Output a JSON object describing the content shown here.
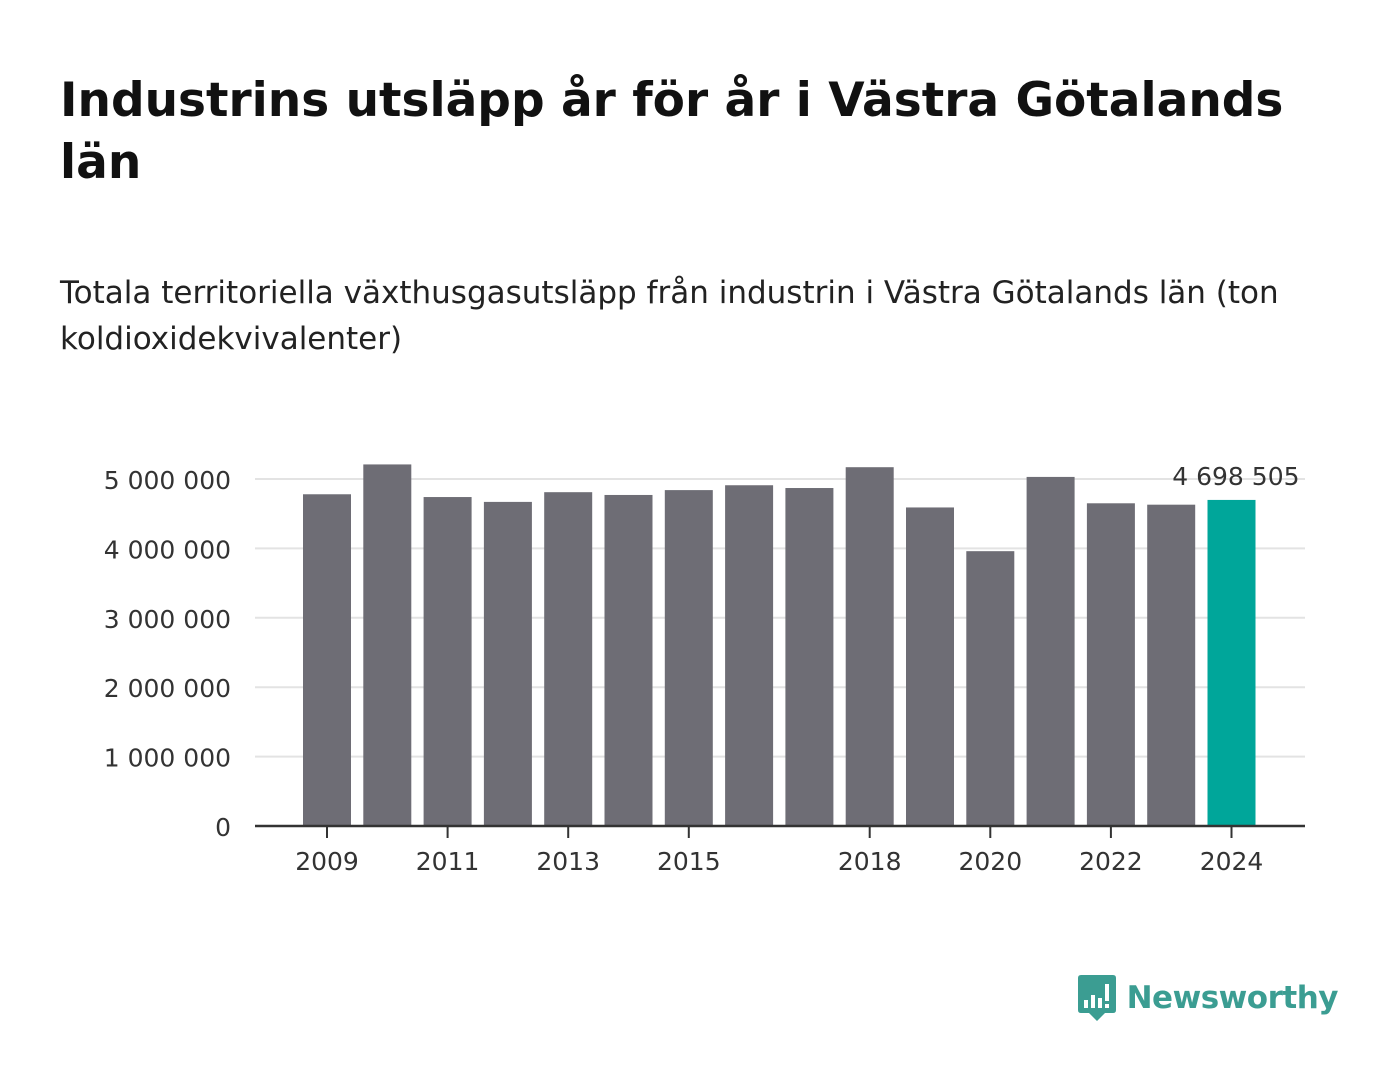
{
  "header": {
    "title": "Industrins utsläpp år för år i Västra Götalands län",
    "subtitle": "Totala territoriella växthusgasutsläpp från industrin i Västra Götalands län (ton koldioxidekvivalenter)"
  },
  "brand": {
    "name": "Newsworthy",
    "icon": "bar-chart-icon",
    "color": "#3b9d92"
  },
  "colors": {
    "bar": "#6e6d75",
    "highlight": "#00a69a",
    "grid": "#e3e3e3",
    "axis": "#333333"
  },
  "chart_data": {
    "type": "bar",
    "title": "Industrins utsläpp år för år i Västra Götalands län",
    "subtitle": "Totala territoriella växthusgasutsläpp från industrin i Västra Götalands län (ton koldioxidekvivalenter)",
    "xlabel": "",
    "ylabel": "",
    "categories": [
      "2009",
      "2010",
      "2011",
      "2012",
      "2013",
      "2014",
      "2015",
      "2016",
      "2017",
      "2018",
      "2019",
      "2020",
      "2021",
      "2022",
      "2023",
      "2024"
    ],
    "values": [
      4780000,
      5210000,
      4740000,
      4670000,
      4810000,
      4770000,
      4840000,
      4910000,
      4870000,
      5170000,
      4590000,
      3960000,
      5030000,
      4650000,
      4630000,
      4698505
    ],
    "x_tick_labels": [
      "2009",
      "2011",
      "2013",
      "2015",
      "2018",
      "2020",
      "2022",
      "2024"
    ],
    "ylim": [
      0,
      5200000
    ],
    "y_ticks": [
      0,
      1000000,
      2000000,
      3000000,
      4000000,
      5000000
    ],
    "y_tick_labels": [
      "0",
      "1 000 000",
      "2 000 000",
      "3 000 000",
      "4 000 000",
      "5 000 000"
    ],
    "highlight_index": 15,
    "annotation": "4 698 505",
    "grid": true,
    "legend": "none"
  }
}
